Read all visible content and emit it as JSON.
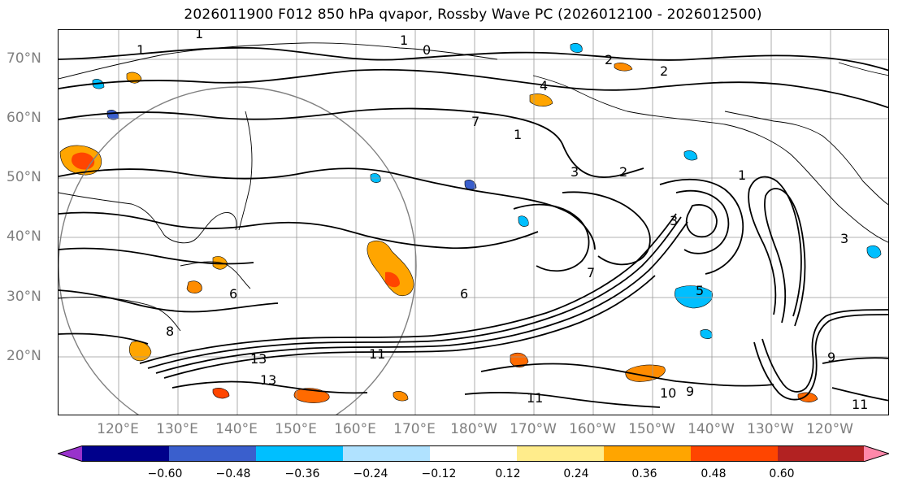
{
  "title": "2026011900 F012 850 hPa qvapor, Rossby Wave PC (2026012100 - 2026012500)",
  "map": {
    "lat_labels": [
      "70°N",
      "60°N",
      "50°N",
      "40°N",
      "30°N",
      "20°N"
    ],
    "lon_labels": [
      "120°E",
      "130°E",
      "140°E",
      "150°E",
      "160°E",
      "170°E",
      "180°W",
      "170°W",
      "160°W",
      "150°W",
      "140°W",
      "130°W",
      "120°W"
    ],
    "contour_labels": [
      "1",
      "1",
      "1",
      "2",
      "2",
      "4",
      "7",
      "1",
      "3",
      "1",
      "2",
      "0",
      "6",
      "6",
      "7",
      "11",
      "13",
      "13",
      "10",
      "11",
      "11",
      "9",
      "9",
      "3",
      "5",
      "8",
      "3"
    ],
    "colors": {
      "coast": "#000000",
      "grid": "#999999",
      "contour": "#000000"
    }
  },
  "colorbar": {
    "tick_labels": [
      "−0.60",
      "−0.48",
      "−0.36",
      "−0.24",
      "−0.12",
      "0.12",
      "0.24",
      "0.36",
      "0.48",
      "0.60"
    ],
    "colors": [
      "#9932cc",
      "#00008b",
      "#3a5fcd",
      "#00bfff",
      "#b0e2ff",
      "#ffffff",
      "#ffec8b",
      "#ffa500",
      "#ff4500",
      "#b22222",
      "#ff88aa"
    ]
  }
}
